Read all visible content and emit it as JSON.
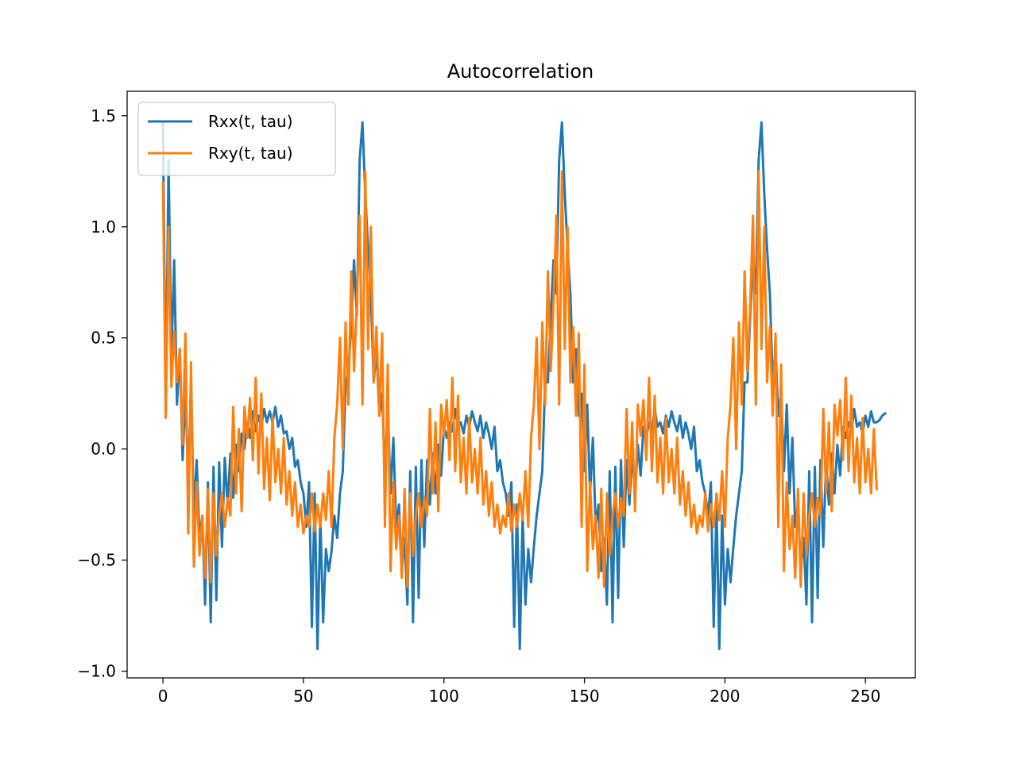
{
  "chart_data": {
    "type": "line",
    "title": "Autocorrelation",
    "xlabel": "",
    "ylabel": "",
    "xlim": [
      -12.75,
      267.75
    ],
    "ylim": [
      -1.03,
      1.61
    ],
    "xticks": [
      0,
      50,
      100,
      150,
      200,
      250
    ],
    "xtick_labels": [
      "0",
      "50",
      "100",
      "150",
      "200",
      "250"
    ],
    "yticks": [
      -1.0,
      -0.5,
      0.0,
      0.5,
      1.0,
      1.5
    ],
    "ytick_labels": [
      "−1.0",
      "−0.5",
      "0.0",
      "0.5",
      "1.0",
      "1.5"
    ],
    "grid": false,
    "legend_position": "top-left",
    "period": 71,
    "series": [
      {
        "name": "Rxx(t, tau)",
        "color": "#1f77b4",
        "x_start": 0,
        "x_end": 255,
        "x_step": 1,
        "values": [
          1.47,
          0.18,
          1.3,
          0.4,
          0.85,
          0.2,
          0.45,
          -0.05,
          0.25,
          -0.15,
          0.3,
          -0.3,
          -0.05,
          -0.4,
          -0.3,
          -0.7,
          -0.15,
          -0.78,
          -0.08,
          -0.68,
          -0.06,
          -0.44,
          -0.04,
          -0.25,
          -0.02,
          -0.22,
          0.02,
          -0.1,
          0.07,
          0.0,
          0.12,
          0.05,
          0.17,
          0.08,
          0.15,
          0.1,
          0.18,
          0.12,
          0.17,
          0.12,
          0.19,
          0.1,
          0.15,
          0.07,
          0.08,
          0.0,
          0.05,
          -0.08,
          -0.05,
          -0.15,
          -0.2,
          -0.35,
          -0.15,
          -0.8,
          -0.2,
          -0.9,
          -0.3,
          -0.78,
          -0.45,
          -0.55,
          -0.46,
          -0.3,
          -0.4,
          -0.2,
          -0.1,
          0.3,
          0.35,
          0.55,
          0.85,
          0.6,
          1.3,
          1.47,
          1.15,
          0.9,
          0.7,
          0.3,
          0.45,
          0.15,
          0.25,
          -0.1,
          0.2,
          -0.2,
          0.05,
          -0.35,
          -0.25,
          -0.55,
          -0.4,
          -0.7,
          -0.1,
          -0.78,
          -0.08,
          -0.67,
          -0.05,
          -0.44,
          -0.05,
          -0.25,
          -0.02,
          -0.2,
          0.02,
          -0.12,
          0.1,
          0.05,
          0.12,
          0.08,
          0.18,
          0.1,
          0.12,
          0.07,
          0.15,
          0.1,
          0.17,
          0.12,
          0.08,
          0.15,
          0.05,
          0.12,
          0.07,
          0.0,
          0.1,
          -0.1,
          -0.05,
          -0.15,
          -0.2,
          -0.3,
          -0.15,
          -0.8,
          -0.25,
          -0.9,
          -0.3,
          -0.7,
          -0.45,
          -0.6,
          -0.44,
          -0.3,
          -0.2,
          -0.1,
          0.3,
          0.3,
          0.6,
          0.85,
          0.7,
          1.3,
          1.47,
          1.15,
          0.9,
          0.7,
          0.3,
          0.45,
          0.15,
          0.25,
          -0.1,
          0.2,
          -0.2,
          0.05,
          -0.35,
          -0.25,
          -0.55,
          -0.4,
          -0.7,
          -0.1,
          -0.78,
          -0.08,
          -0.67,
          -0.05,
          -0.44,
          -0.05,
          -0.25,
          -0.02,
          -0.2,
          0.02,
          -0.12,
          0.1,
          0.05,
          0.12,
          0.08,
          0.18,
          0.1,
          0.12,
          0.07,
          0.15,
          0.1,
          0.17,
          0.12,
          0.08,
          0.15,
          0.05,
          0.12,
          0.07,
          0.0,
          0.1,
          -0.1,
          -0.05,
          -0.15,
          -0.2,
          -0.3,
          -0.15,
          -0.8,
          -0.25,
          -0.9,
          -0.3,
          -0.7,
          -0.45,
          -0.6,
          -0.44,
          -0.3,
          -0.2,
          -0.1,
          0.3,
          0.3,
          0.6,
          0.85,
          0.7,
          1.3,
          1.47,
          1.15,
          0.9,
          0.7,
          0.3,
          0.45,
          0.15,
          0.25,
          -0.1,
          0.2,
          -0.2,
          0.05,
          -0.35,
          -0.25,
          -0.55,
          -0.4,
          -0.7,
          -0.1,
          -0.78,
          -0.08,
          -0.67,
          -0.05,
          -0.44,
          -0.05,
          -0.25,
          -0.02,
          -0.2,
          0.02,
          -0.12,
          0.1,
          0.05,
          0.12,
          0.08,
          0.18,
          0.1,
          0.12,
          0.07,
          0.15,
          0.1,
          0.17,
          0.12,
          0.12,
          0.13,
          0.15,
          0.16
        ]
      },
      {
        "name": "Rxy(t, tau)",
        "color": "#ff7f0e",
        "x_start": 0,
        "x_end": 255,
        "x_step": 1,
        "values": [
          1.2,
          0.14,
          1.0,
          0.28,
          0.53,
          0.3,
          0.45,
          0.02,
          0.52,
          -0.38,
          0.39,
          -0.53,
          -0.15,
          -0.48,
          -0.3,
          -0.58,
          -0.18,
          -0.6,
          -0.2,
          -0.48,
          -0.3,
          -0.2,
          -0.35,
          -0.22,
          -0.3,
          0.19,
          -0.2,
          0.09,
          -0.28,
          0.19,
          0.05,
          0.23,
          -0.05,
          0.32,
          -0.11,
          0.25,
          -0.18,
          0.05,
          -0.23,
          0.15,
          -0.15,
          0.0,
          -0.2,
          0.05,
          -0.25,
          -0.1,
          -0.3,
          -0.15,
          -0.35,
          -0.25,
          -0.38,
          -0.3,
          -0.35,
          -0.2,
          -0.37,
          -0.25,
          -0.35,
          -0.2,
          -0.32,
          -0.1,
          -0.35,
          0.05,
          0.2,
          0.5,
          0.0,
          0.57,
          0.2,
          0.8,
          0.35,
          0.65,
          1.05,
          0.2,
          1.25,
          0.45,
          1.0,
          0.3,
          0.55,
          0.15,
          0.52,
          -0.35,
          0.38,
          -0.55,
          -0.15,
          -0.45,
          -0.3,
          -0.58,
          -0.18,
          -0.62,
          -0.2,
          -0.48,
          -0.3,
          -0.2,
          -0.35,
          -0.22,
          -0.3,
          0.18,
          -0.2,
          0.12,
          -0.28,
          0.2,
          0.06,
          0.22,
          -0.05,
          0.32,
          -0.1,
          0.24,
          -0.15,
          0.05,
          -0.2,
          0.14,
          -0.15,
          0.0,
          -0.2,
          0.05,
          -0.25,
          -0.1,
          -0.3,
          -0.15,
          -0.35,
          -0.25,
          -0.38,
          -0.3,
          -0.35,
          -0.2,
          -0.37,
          -0.25,
          -0.35,
          -0.2,
          -0.32,
          -0.1,
          -0.35,
          0.05,
          0.2,
          0.5,
          0.0,
          0.57,
          0.2,
          0.8,
          0.35,
          0.65,
          1.05,
          0.2,
          1.25,
          0.45,
          1.0,
          0.3,
          0.55,
          0.15,
          0.52,
          -0.35,
          0.38,
          -0.55,
          -0.15,
          -0.45,
          -0.3,
          -0.58,
          -0.18,
          -0.62,
          -0.2,
          -0.48,
          -0.3,
          -0.2,
          -0.35,
          -0.22,
          -0.3,
          0.18,
          -0.2,
          0.12,
          -0.28,
          0.2,
          0.06,
          0.22,
          -0.05,
          0.32,
          -0.1,
          0.24,
          -0.15,
          0.05,
          -0.2,
          0.14,
          -0.15,
          0.0,
          -0.2,
          0.05,
          -0.25,
          -0.1,
          -0.3,
          -0.15,
          -0.35,
          -0.25,
          -0.38,
          -0.3,
          -0.35,
          -0.2,
          -0.37,
          -0.25,
          -0.35,
          -0.2,
          -0.32,
          -0.1,
          -0.35,
          0.05,
          0.2,
          0.5,
          0.0,
          0.57,
          0.2,
          0.8,
          0.35,
          0.65,
          1.05,
          0.2,
          1.25,
          0.45,
          1.0,
          0.3,
          0.55,
          0.15,
          0.52,
          -0.35,
          0.38,
          -0.55,
          -0.15,
          -0.45,
          -0.3,
          -0.58,
          -0.18,
          -0.62,
          -0.2,
          -0.48,
          -0.3,
          -0.2,
          -0.35,
          -0.22,
          -0.3,
          0.18,
          -0.2,
          0.12,
          -0.28,
          0.2,
          0.06,
          0.22,
          -0.05,
          0.32,
          -0.1,
          0.24,
          -0.15,
          0.05,
          -0.2,
          0.14,
          -0.15,
          0.0,
          -0.2,
          0.09,
          -0.18
        ]
      }
    ]
  }
}
